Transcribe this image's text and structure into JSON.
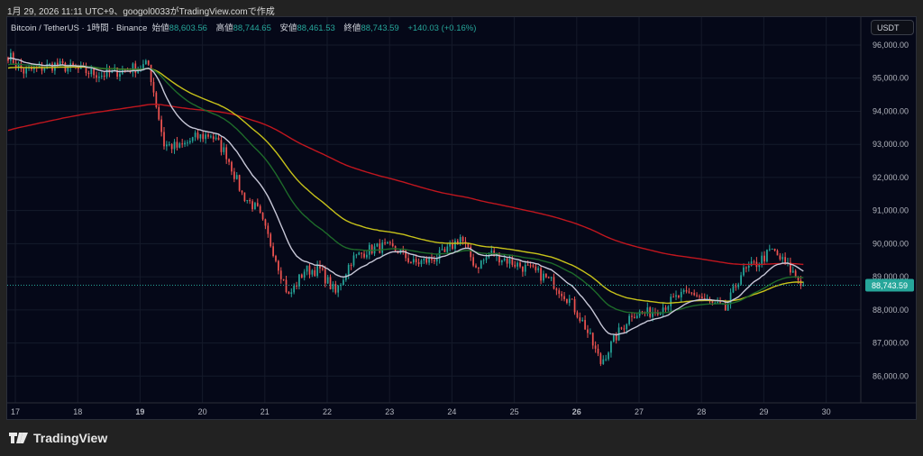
{
  "caption": "1月 29, 2026 11:11 UTC+9、googol0033がTradingView.comで作成",
  "legend": {
    "symbol": "Bitcoin / TetherUS · 1時間 · Binance",
    "open_label": "始値",
    "open": "88,603.56",
    "high_label": "高値",
    "high": "88,744.65",
    "low_label": "安値",
    "low": "88,461.53",
    "close_label": "終値",
    "close": "88,743.59",
    "change": "+140.03 (+0.16%)"
  },
  "currency": "USDT",
  "last_price_label": "88,743.59",
  "brand": "TradingView",
  "colors": {
    "up": "#26a69a",
    "down": "#ef5350",
    "ma_fast": "#c8c8d8",
    "ma_mid": "#1e6b2a",
    "ma_slow": "#c7c21a",
    "ma_long": "#c0161e",
    "last": "#26a69a"
  },
  "chart_data": {
    "type": "candlestick",
    "title": "Bitcoin / TetherUS · 1時間 · Binance",
    "ylim": [
      85500,
      96700
    ],
    "yticks": [
      86000,
      87000,
      88000,
      89000,
      90000,
      91000,
      92000,
      93000,
      94000,
      95000,
      96000
    ],
    "ytick_labels": [
      "86,000.00",
      "87,000.00",
      "88,000.00",
      "89,000.00",
      "90,000.00",
      "91,000.00",
      "92,000.00",
      "93,000.00",
      "94,000.00",
      "95,000.00",
      "96,000.00"
    ],
    "xticks": [
      "17",
      "18",
      "19",
      "20",
      "21",
      "22",
      "23",
      "24",
      "25",
      "26",
      "27",
      "28",
      "29",
      "30"
    ],
    "xticks_bold": [
      "19",
      "26"
    ],
    "x_start_day": 17,
    "x_end_day": 30.6,
    "close_path_6h": [
      95700,
      95200,
      95300,
      95400,
      95300,
      95200,
      95100,
      95200,
      95300,
      95400,
      93000,
      92900,
      93200,
      93300,
      92700,
      91500,
      91000,
      89800,
      88400,
      89200,
      89200,
      88500,
      89500,
      89800,
      89900,
      89800,
      89400,
      89500,
      89700,
      90200,
      89300,
      89700,
      89500,
      89300,
      89100,
      88800,
      88300,
      87500,
      86400,
      87200,
      87900,
      87900,
      88100,
      88400,
      88500,
      88200,
      88000,
      89100,
      89400,
      89800,
      89300,
      88743.59
    ],
    "last_price": 88743.59
  }
}
